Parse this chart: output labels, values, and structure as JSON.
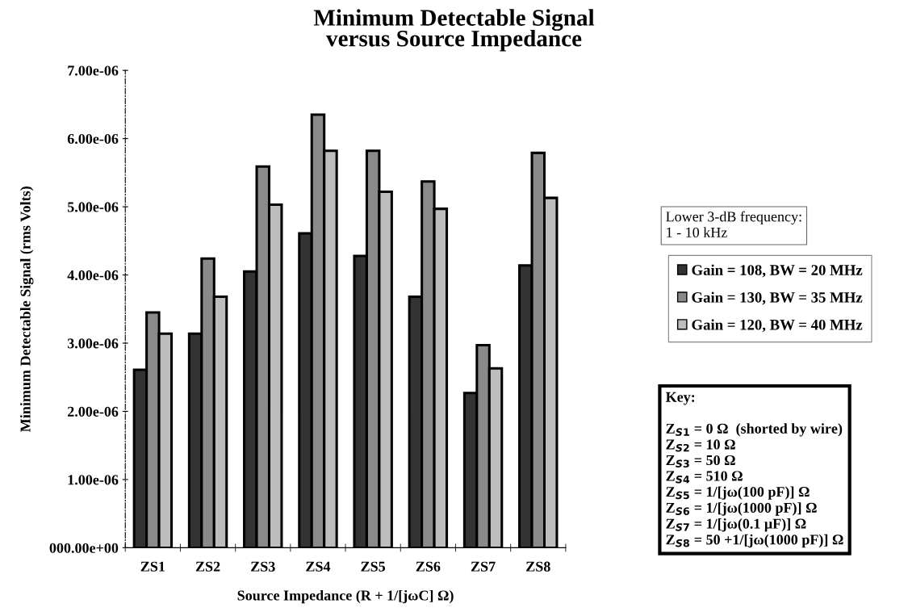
{
  "chart_data": {
    "type": "bar",
    "title": "Minimum Detectable Signal\nversus Source Impedance",
    "xlabel": "Source Impedance (R + 1/[jωC] Ω)",
    "ylabel": "Minimum Detectable Signal (rms Volts)",
    "categories": [
      "ZS1",
      "ZS2",
      "ZS3",
      "ZS4",
      "ZS5",
      "ZS6",
      "ZS7",
      "ZS8"
    ],
    "series": [
      {
        "name": "Gain = 108, BW = 20 MHz",
        "color": "#333333",
        "values": [
          2.61e-06,
          3.14e-06,
          4.05e-06,
          4.61e-06,
          4.28e-06,
          3.68e-06,
          2.27e-06,
          4.14e-06
        ]
      },
      {
        "name": "Gain = 130, BW = 35 MHz",
        "color": "#8a8a8a",
        "values": [
          3.45e-06,
          4.24e-06,
          5.59e-06,
          6.35e-06,
          5.82e-06,
          5.37e-06,
          2.97e-06,
          5.79e-06
        ]
      },
      {
        "name": "Gain = 120, BW = 40 MHz",
        "color": "#bdbdbd",
        "values": [
          3.14e-06,
          3.68e-06,
          5.03e-06,
          5.82e-06,
          5.22e-06,
          4.97e-06,
          2.63e-06,
          5.13e-06
        ]
      }
    ],
    "ylim": [
      0,
      7e-06
    ],
    "yticks": [
      {
        "value": 0,
        "label": "000.00e+00"
      },
      {
        "value": 1e-06,
        "label": "1.00e-06"
      },
      {
        "value": 2e-06,
        "label": "2.00e-06"
      },
      {
        "value": 3e-06,
        "label": "3.00e-06"
      },
      {
        "value": 4e-06,
        "label": "4.00e-06"
      },
      {
        "value": 5e-06,
        "label": "5.00e-06"
      },
      {
        "value": 6e-06,
        "label": "6.00e-06"
      },
      {
        "value": 7e-06,
        "label": "7.00e-06"
      }
    ],
    "grid": false,
    "legend": "right",
    "annotations": [
      "Lower 3-dB frequency:\n1 - 10 kHz",
      "Key:\n\nZ$_{S1}$ = 0 Ω  (shorted by wire)\nZ$_{S2}$ = 10 Ω\nZ$_{S3}$ = 50 Ω\nZ$_{S4}$ = 510 Ω\nZ$_{S5}$ = 1/[jω(100 pF)] Ω\nZ$_{S6}$ = 1/[jω(1000 pF)] Ω\nZ$_{S7}$ = 1/[jω(0.1 μF)] Ω\nZ$_{S8}$ = 50 +1/[jω(1000 pF)] Ω"
    ]
  }
}
